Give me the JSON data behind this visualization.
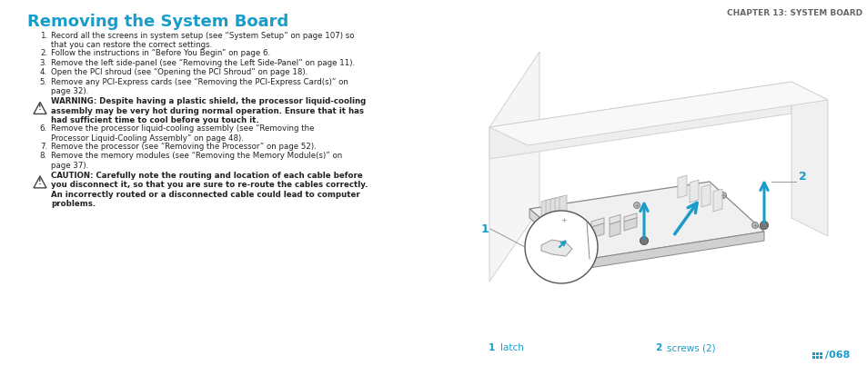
{
  "title": "Removing the System Board",
  "title_color": "#1a9cc9",
  "title_fontsize": 13,
  "chapter_header": "CHAPTER 13: SYSTEM BOARD",
  "chapter_color": "#666666",
  "chapter_fontsize": 6.5,
  "body_fontsize": 6.2,
  "body_color": "#222222",
  "label_color": "#1a9cc9",
  "background_color": "#ffffff",
  "steps": [
    "Record all the screens in system setup (see “System Setup” on page 107) so\nthat you can restore the correct settings.",
    "Follow the instructions in “Before You Begin” on page 6.",
    "Remove the left side-panel (see “Removing the Left Side-Panel” on page 11).",
    "Open the PCI shroud (see “Opening the PCI Shroud” on page 18).",
    "Remove any PCI-Express cards (see “Removing the PCI-Express Card(s)” on\npage 32)."
  ],
  "warning_text": "WARNING: Despite having a plastic shield, the processor liquid-cooling\nassembly may be very hot during normal operation. Ensure that it has\nhad sufficient time to cool before you touch it.",
  "steps2": [
    "Remove the processor liquid-cooling assembly (see “Removing the\nProcessor Liquid-Cooling Assembly” on page 48).",
    "Remove the processor (see “Removing the Processor” on page 52).",
    "Remove the memory modules (see “Removing the Memory Module(s)” on\npage 37)."
  ],
  "caution_text": "CAUTION: Carefully note the routing and location of each cable before\nyou disconnect it, so that you are sure to re-route the cables correctly.\nAn incorrectly routed or a disconnected cable could lead to computer\nproblems.",
  "legend_1_num": "1",
  "legend_1_label": "latch",
  "legend_2_num": "2",
  "legend_2_label": "screws (2)",
  "page_num": "068"
}
